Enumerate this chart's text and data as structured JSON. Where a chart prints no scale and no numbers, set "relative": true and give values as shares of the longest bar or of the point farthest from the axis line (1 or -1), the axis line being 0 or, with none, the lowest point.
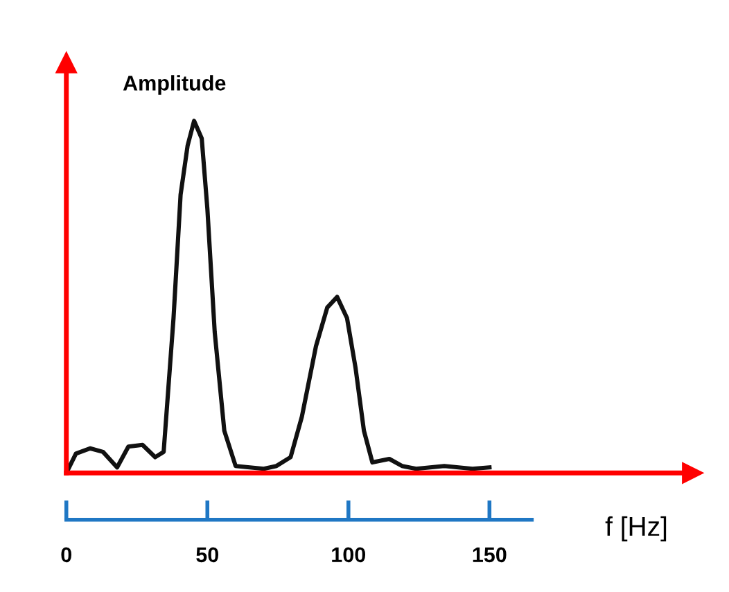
{
  "chart_data": {
    "type": "line",
    "relative": true,
    "ylabel": "Amplitude",
    "xlabel": "f [Hz]",
    "xlim": [
      0,
      222
    ],
    "xticks": [
      0,
      50,
      100,
      150
    ],
    "x": [
      0,
      3.4,
      8.4,
      13,
      18,
      22,
      27,
      31.5,
      34.5,
      38,
      40.5,
      43,
      45.3,
      48,
      50,
      52.6,
      56,
      60,
      65,
      70,
      74.5,
      79.5,
      83.5,
      88.5,
      92.5,
      96,
      99.5,
      102.5,
      105.5,
      108.5,
      114.5,
      119,
      124,
      134,
      144,
      150
    ],
    "series": [
      {
        "color": "#111111",
        "values": [
          0,
          0.055,
          0.07,
          0.06,
          0.016,
          0.075,
          0.08,
          0.045,
          0.06,
          0.44,
          0.79,
          0.93,
          1.0,
          0.95,
          0.75,
          0.4,
          0.12,
          0.02,
          0.016,
          0.012,
          0.02,
          0.045,
          0.16,
          0.36,
          0.47,
          0.5,
          0.44,
          0.3,
          0.12,
          0.03,
          0.04,
          0.02,
          0.012,
          0.02,
          0.012,
          0.016
        ]
      }
    ]
  }
}
